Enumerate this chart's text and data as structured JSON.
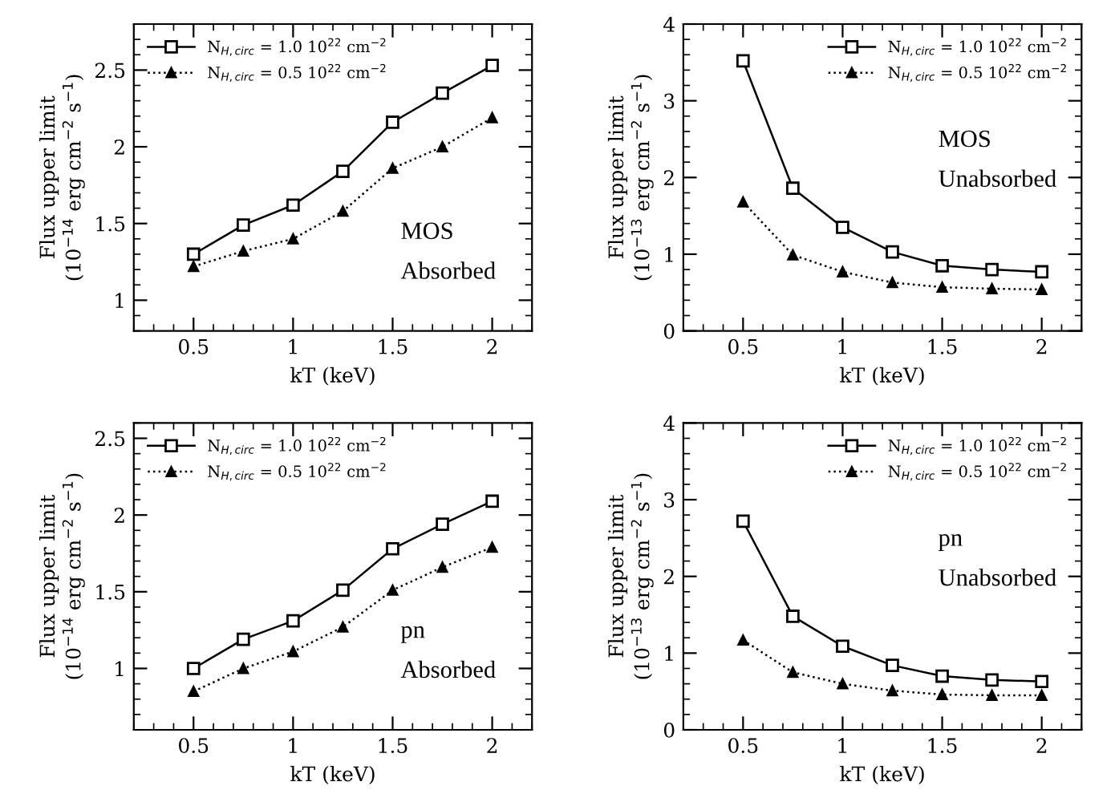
{
  "chart_data": [
    {
      "type": "line",
      "xlabel": "kT (keV)",
      "ylabel": "Flux upper limit\n(10$^{−14}$ erg cm$^{−2}$ s$^{−1}$)",
      "x": [
        0.5,
        0.75,
        1,
        1.25,
        1.5,
        1.75,
        2
      ],
      "xlim": [
        0.2,
        2.2
      ],
      "xticks": [
        0.5,
        1,
        1.5,
        2
      ],
      "ylim": [
        0.8,
        2.8
      ],
      "yticks": [
        1,
        1.5,
        2,
        2.5
      ],
      "legend": "top left",
      "grid": false,
      "annotations": [
        "MOS",
        "Absorbed"
      ],
      "series": [
        {
          "name": "N$_{H,circ}$ = 1.0 10$^{22}$ cm$^{−2}$",
          "color": "#000000",
          "marker": "square",
          "line_style": "solid",
          "values": [
            1.3,
            1.49,
            1.62,
            1.84,
            2.16,
            2.35,
            2.53
          ]
        },
        {
          "name": "N$_{H,circ}$ = 0.5 10$^{22}$ cm$^{−2}$",
          "color": "#000000",
          "marker": "triangle",
          "line_style": "dotted",
          "values": [
            1.22,
            1.32,
            1.4,
            1.58,
            1.86,
            2.0,
            2.19
          ]
        }
      ]
    },
    {
      "type": "line",
      "xlabel": "kT (keV)",
      "ylabel": "Flux upper limit\n(10$^{−13}$ erg cm$^{−2}$ s$^{−1}$)",
      "x": [
        0.5,
        0.75,
        1,
        1.25,
        1.5,
        1.75,
        2
      ],
      "xlim": [
        0.2,
        2.2
      ],
      "xticks": [
        0.5,
        1,
        1.5,
        2
      ],
      "ylim": [
        0,
        4
      ],
      "yticks": [
        0,
        1,
        2,
        3,
        4
      ],
      "legend": "top right",
      "grid": false,
      "annotations": [
        "MOS",
        "Unabsorbed"
      ],
      "series": [
        {
          "name": "N$_{H,circ}$ = 1.0 10$^{22}$ cm$^{−2}$",
          "color": "#000000",
          "marker": "square",
          "line_style": "solid",
          "values": [
            3.52,
            1.86,
            1.35,
            1.03,
            0.85,
            0.8,
            0.77
          ]
        },
        {
          "name": "N$_{H,circ}$ = 0.5 10$^{22}$ cm$^{−2}$",
          "color": "#000000",
          "marker": "triangle",
          "line_style": "dotted",
          "values": [
            1.68,
            0.99,
            0.77,
            0.63,
            0.57,
            0.55,
            0.54
          ]
        }
      ]
    },
    {
      "type": "line",
      "xlabel": "kT (keV)",
      "ylabel": "Flux upper limit\n(10$^{−14}$ erg cm$^{−2}$ s$^{−1}$)",
      "x": [
        0.5,
        0.75,
        1,
        1.25,
        1.5,
        1.75,
        2
      ],
      "xlim": [
        0.2,
        2.2
      ],
      "xticks": [
        0.5,
        1,
        1.5,
        2
      ],
      "ylim": [
        0.6,
        2.6
      ],
      "yticks": [
        1,
        1.5,
        2,
        2.5
      ],
      "legend": "top left",
      "grid": false,
      "annotations": [
        "pn",
        "Absorbed"
      ],
      "series": [
        {
          "name": "N$_{H,circ}$ = 1.0 10$^{22}$ cm$^{−2}$",
          "color": "#000000",
          "marker": "square",
          "line_style": "solid",
          "values": [
            1.0,
            1.19,
            1.31,
            1.51,
            1.78,
            1.94,
            2.09
          ]
        },
        {
          "name": "N$_{H,circ}$ = 0.5 10$^{22}$ cm$^{−2}$",
          "color": "#000000",
          "marker": "triangle",
          "line_style": "dotted",
          "values": [
            0.85,
            1.0,
            1.11,
            1.27,
            1.51,
            1.66,
            1.79
          ]
        }
      ]
    },
    {
      "type": "line",
      "xlabel": "kT (keV)",
      "ylabel": "Flux upper limit\n(10$^{−13}$ erg cm$^{−2}$ s$^{−1}$)",
      "x": [
        0.5,
        0.75,
        1,
        1.25,
        1.5,
        1.75,
        2
      ],
      "xlim": [
        0.2,
        2.2
      ],
      "xticks": [
        0.5,
        1,
        1.5,
        2
      ],
      "ylim": [
        0,
        4
      ],
      "yticks": [
        0,
        1,
        2,
        3,
        4
      ],
      "legend": "top right",
      "grid": false,
      "annotations": [
        "pn",
        "Unabsorbed"
      ],
      "series": [
        {
          "name": "N$_{H,circ}$ = 1.0 10$^{22}$ cm$^{−2}$",
          "color": "#000000",
          "marker": "square",
          "line_style": "solid",
          "values": [
            2.72,
            1.48,
            1.09,
            0.84,
            0.7,
            0.65,
            0.63
          ]
        },
        {
          "name": "N$_{H,circ}$ = 0.5 10$^{22}$ cm$^{−2}$",
          "color": "#000000",
          "marker": "triangle",
          "line_style": "dotted",
          "values": [
            1.17,
            0.75,
            0.6,
            0.51,
            0.46,
            0.45,
            0.45
          ]
        }
      ]
    }
  ]
}
